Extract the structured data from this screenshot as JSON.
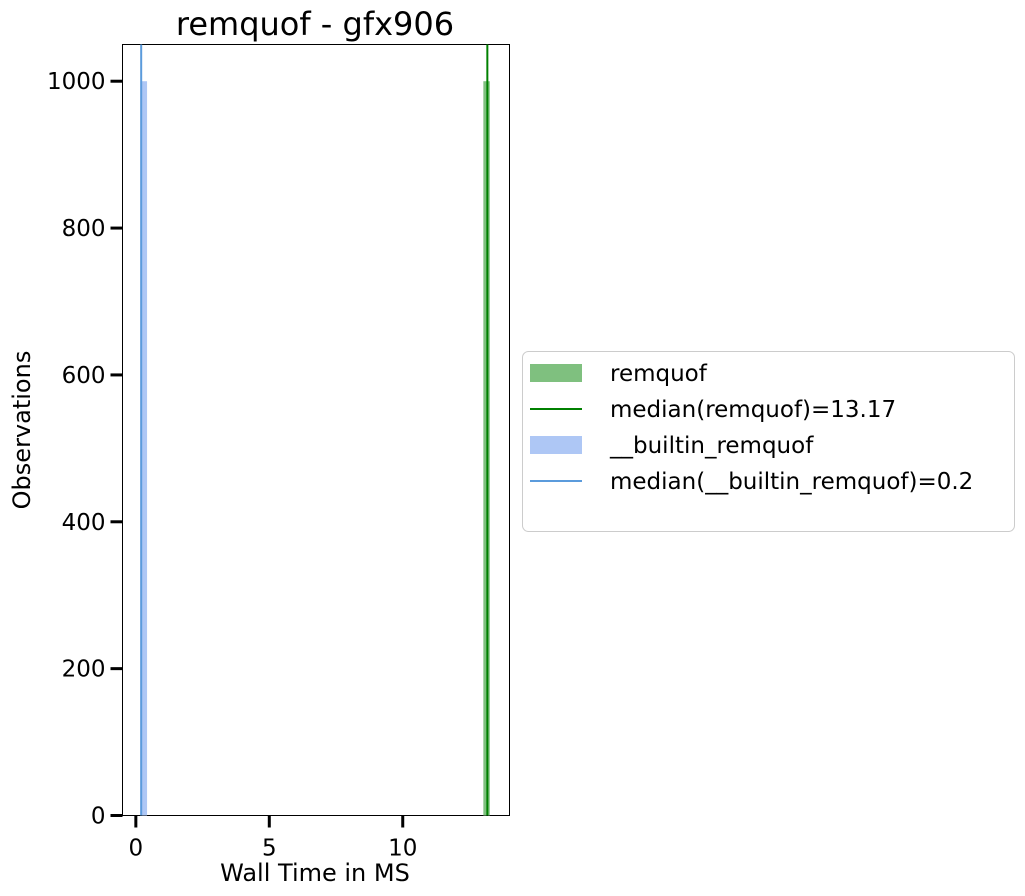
{
  "chart_data": {
    "type": "histogram",
    "title": "remquof - gfx906",
    "xlabel": "Wall Time in MS",
    "ylabel": "Observations",
    "xlim": [
      -0.5,
      14.0
    ],
    "ylim": [
      0,
      1050
    ],
    "xticks": [
      0,
      5,
      10
    ],
    "yticks": [
      0,
      200,
      400,
      600,
      800,
      1000
    ],
    "grid": false,
    "legend_position": "right, outside",
    "series": [
      {
        "name": "remquof",
        "kind": "histogram",
        "color": "#7fc07f",
        "bins": [
          {
            "x0": 13.02,
            "x1": 13.26,
            "count": 1000
          }
        ]
      },
      {
        "name": "median(remquof)=13.17",
        "kind": "vline",
        "color": "#008000",
        "x": 13.17
      },
      {
        "name": "__builtin_remquof",
        "kind": "histogram",
        "color": "#aec7f5",
        "bins": [
          {
            "x0": 0.17,
            "x1": 0.42,
            "count": 1000
          }
        ]
      },
      {
        "name": "median(__builtin_remquof)=0.2",
        "kind": "vline",
        "color": "#5b9bdc",
        "x": 0.2
      }
    ]
  }
}
